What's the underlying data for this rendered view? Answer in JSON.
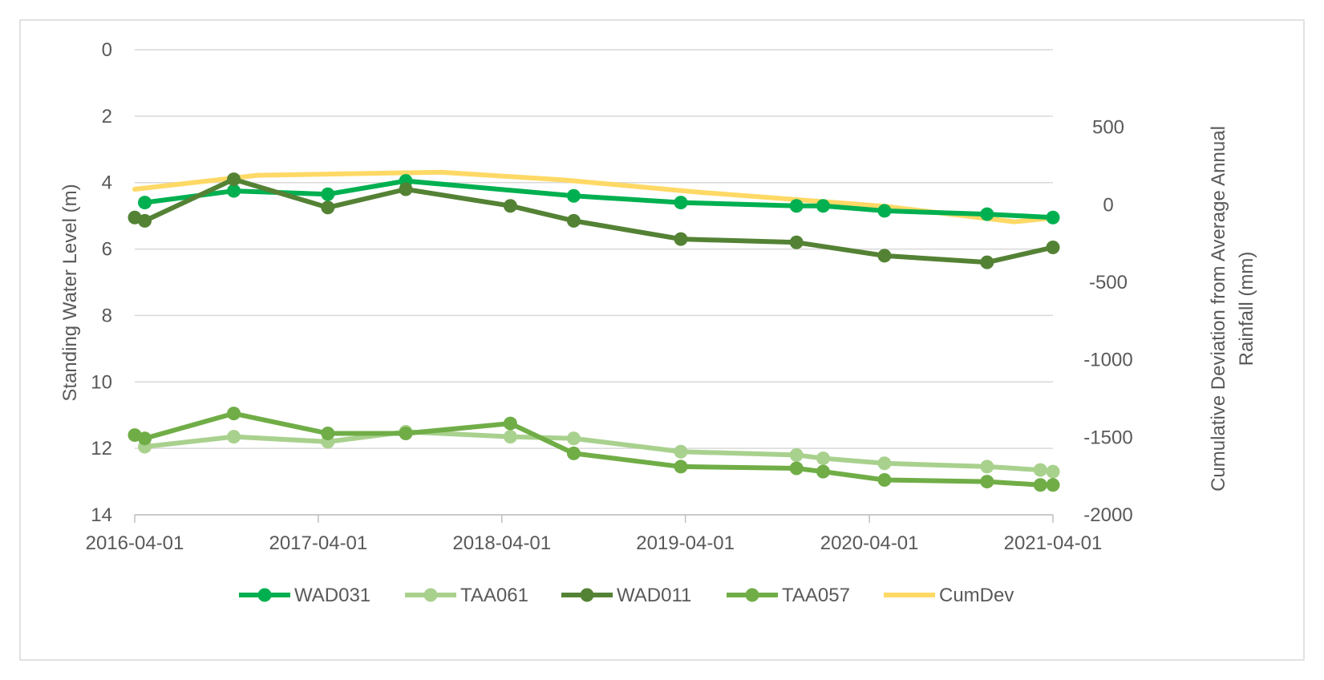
{
  "chart_data": {
    "type": "line",
    "title": "",
    "xlabel": "",
    "ylabel": "Standing Water Level (m)",
    "y2label_line1": "Cumulative Deviation from Average Annual",
    "y2label_line2": "Rainfall (mm)",
    "ylim": [
      0,
      14
    ],
    "y_inverted": true,
    "y_ticks": [
      "0",
      "2",
      "4",
      "6",
      "8",
      "10",
      "12",
      "14"
    ],
    "y2lim": [
      -2000,
      1000
    ],
    "y2_ticks": [
      "500",
      "0",
      "-500",
      "-1000",
      "-1500",
      "-2000"
    ],
    "x_ticks": [
      "2016-04-01",
      "2017-04-01",
      "2018-04-01",
      "2019-04-01",
      "2020-04-01",
      "2021-04-01"
    ],
    "x_range": [
      "2016-04-01",
      "2021-04-01"
    ],
    "series": [
      {
        "name": "WAD031",
        "axis": "left",
        "color": "#00b050",
        "markers": true,
        "points": [
          [
            "2016-04-21",
            4.6
          ],
          [
            "2016-10-15",
            4.25
          ],
          [
            "2017-04-20",
            4.35
          ],
          [
            "2017-09-22",
            3.95
          ],
          [
            "2018-08-22",
            4.4
          ],
          [
            "2019-03-23",
            4.6
          ],
          [
            "2019-11-08",
            4.7
          ],
          [
            "2019-12-31",
            4.7
          ],
          [
            "2020-05-01",
            4.85
          ],
          [
            "2020-11-21",
            4.95
          ],
          [
            "2021-04-01",
            5.05
          ]
        ]
      },
      {
        "name": "TAA061",
        "axis": "left",
        "color": "#a9d18e",
        "markers": true,
        "points": [
          [
            "2016-04-21",
            11.95
          ],
          [
            "2016-10-15",
            11.65
          ],
          [
            "2017-04-20",
            11.8
          ],
          [
            "2017-09-22",
            11.5
          ],
          [
            "2018-04-18",
            11.65
          ],
          [
            "2018-08-22",
            11.7
          ],
          [
            "2019-03-23",
            12.1
          ],
          [
            "2019-11-08",
            12.2
          ],
          [
            "2019-12-31",
            12.3
          ],
          [
            "2020-05-01",
            12.45
          ],
          [
            "2020-11-21",
            12.55
          ],
          [
            "2021-03-07",
            12.65
          ],
          [
            "2021-04-01",
            12.7
          ]
        ]
      },
      {
        "name": "WAD011",
        "axis": "left",
        "color": "#548235",
        "markers": true,
        "points": [
          [
            "2016-04-01",
            5.05
          ],
          [
            "2016-04-21",
            5.15
          ],
          [
            "2016-10-15",
            3.9
          ],
          [
            "2017-04-20",
            4.75
          ],
          [
            "2017-09-22",
            4.2
          ],
          [
            "2018-04-18",
            4.7
          ],
          [
            "2018-08-22",
            5.15
          ],
          [
            "2019-03-23",
            5.7
          ],
          [
            "2019-11-08",
            5.8
          ],
          [
            "2020-05-01",
            6.2
          ],
          [
            "2020-11-21",
            6.4
          ],
          [
            "2021-04-01",
            5.95
          ]
        ]
      },
      {
        "name": "TAA057",
        "axis": "left",
        "color": "#70ad47",
        "markers": true,
        "points": [
          [
            "2016-04-01",
            11.6
          ],
          [
            "2016-04-21",
            11.7
          ],
          [
            "2016-10-15",
            10.95
          ],
          [
            "2017-04-20",
            11.55
          ],
          [
            "2017-09-22",
            11.55
          ],
          [
            "2018-04-18",
            11.25
          ],
          [
            "2018-08-22",
            12.15
          ],
          [
            "2019-03-23",
            12.55
          ],
          [
            "2019-11-08",
            12.6
          ],
          [
            "2019-12-31",
            12.7
          ],
          [
            "2020-05-01",
            12.95
          ],
          [
            "2020-11-21",
            13.0
          ],
          [
            "2021-03-07",
            13.1
          ],
          [
            "2021-04-01",
            13.1
          ]
        ]
      },
      {
        "name": "CumDev",
        "axis": "right",
        "color": "#ffd966",
        "markers": false,
        "points": [
          [
            "2016-04-01",
            100
          ],
          [
            "2016-12-01",
            190
          ],
          [
            "2017-12-01",
            210
          ],
          [
            "2018-08-01",
            160
          ],
          [
            "2019-05-01",
            80
          ],
          [
            "2020-05-01",
            -10
          ],
          [
            "2021-01-15",
            -110
          ],
          [
            "2021-04-01",
            -85
          ]
        ]
      }
    ],
    "legend": [
      "WAD031",
      "TAA061",
      "WAD011",
      "TAA057",
      "CumDev"
    ],
    "legend_position": "bottom",
    "grid": true
  }
}
